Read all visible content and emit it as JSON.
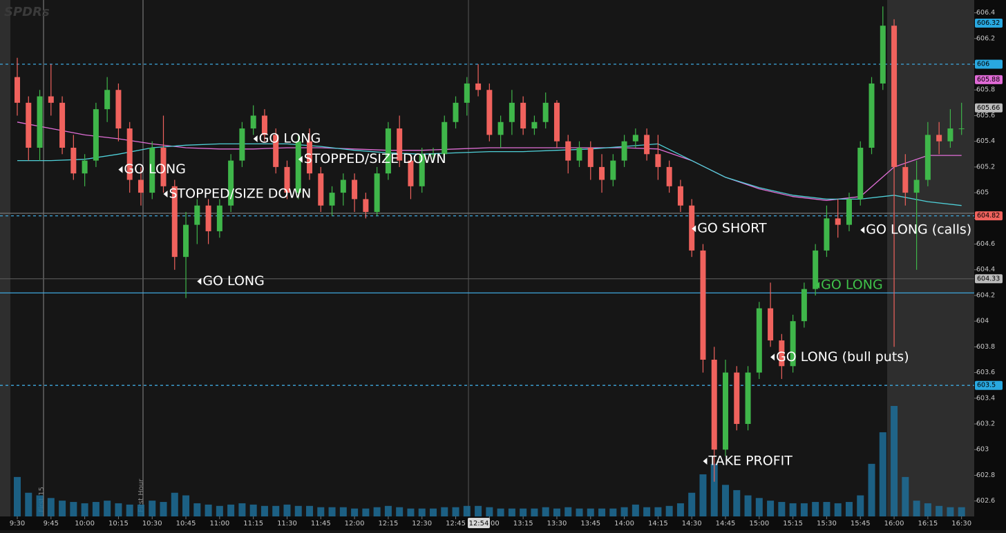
{
  "watermark": "SPDRs",
  "session_markers": [
    "First 15",
    "First Hour"
  ],
  "cursor_label": "12:54",
  "chart_data": {
    "type": "candlestick",
    "categories": [
      "9:30",
      null,
      null,
      "9:45",
      null,
      null,
      "10:00",
      null,
      null,
      "10:15",
      null,
      null,
      "10:30",
      null,
      null,
      "10:45",
      null,
      null,
      "11:00",
      null,
      null,
      "11:15",
      null,
      null,
      "11:30",
      null,
      null,
      "11:45",
      null,
      null,
      "12:00",
      null,
      null,
      "12:15",
      null,
      null,
      "12:30",
      null,
      null,
      "12:45",
      null,
      null,
      "13:00",
      null,
      null,
      "13:15",
      null,
      null,
      "13:30",
      null,
      null,
      "13:45",
      null,
      null,
      "14:00",
      null,
      null,
      "14:15",
      null,
      null,
      "14:30",
      null,
      null,
      "14:45",
      null,
      null,
      "15:00",
      null,
      null,
      "15:15",
      null,
      null,
      "15:30",
      null,
      null,
      "15:45",
      null,
      null,
      "16:00",
      null,
      null,
      "16:15",
      null,
      null,
      "16:30"
    ],
    "open": [
      605.9,
      605.7,
      605.35,
      605.75,
      605.7,
      605.35,
      605.15,
      605.25,
      605.65,
      605.8,
      605.5,
      605.1,
      605.0,
      605.35,
      605.05,
      604.5,
      604.75,
      604.9,
      604.7,
      604.9,
      605.25,
      605.5,
      605.6,
      605.45,
      605.2,
      605.0,
      605.4,
      605.15,
      604.9,
      605.0,
      605.1,
      604.95,
      604.85,
      605.15,
      605.5,
      605.25,
      605.05,
      605.3,
      605.3,
      605.55,
      605.7,
      605.85,
      605.8,
      605.45,
      605.55,
      605.7,
      605.5,
      605.55,
      605.7,
      605.4,
      605.25,
      605.35,
      605.2,
      605.1,
      605.25,
      605.4,
      605.45,
      605.3,
      605.2,
      605.05,
      604.9,
      604.55,
      603.7,
      603.0,
      603.6,
      603.2,
      603.6,
      604.1,
      603.85,
      603.65,
      604.0,
      604.25,
      604.55,
      604.8,
      604.75,
      604.95,
      605.35,
      605.85,
      606.3,
      605.2,
      605.0,
      605.1,
      605.45,
      605.4,
      605.5
    ],
    "high": [
      606.05,
      605.75,
      605.8,
      606.0,
      605.75,
      605.45,
      605.3,
      605.7,
      605.9,
      605.85,
      605.55,
      605.2,
      605.4,
      605.6,
      605.1,
      604.85,
      604.95,
      604.95,
      604.95,
      605.3,
      605.55,
      605.68,
      605.65,
      605.5,
      605.25,
      605.45,
      605.5,
      605.2,
      605.05,
      605.15,
      605.15,
      605.0,
      605.2,
      605.55,
      605.6,
      605.3,
      605.35,
      605.35,
      605.6,
      605.75,
      605.9,
      606.0,
      605.85,
      605.6,
      605.8,
      605.75,
      605.6,
      605.78,
      605.72,
      605.45,
      605.4,
      605.4,
      605.3,
      605.3,
      605.45,
      605.5,
      605.5,
      605.45,
      605.25,
      605.1,
      604.95,
      604.6,
      603.8,
      603.7,
      603.65,
      603.65,
      604.15,
      604.3,
      603.9,
      604.05,
      604.3,
      604.6,
      604.9,
      604.95,
      605.0,
      605.4,
      605.9,
      606.45,
      606.35,
      605.3,
      605.25,
      605.55,
      605.55,
      605.65,
      605.7
    ],
    "low": [
      605.6,
      605.25,
      605.25,
      605.6,
      605.3,
      605.1,
      605.05,
      605.2,
      605.55,
      605.4,
      605.0,
      604.9,
      604.95,
      605.0,
      604.4,
      604.18,
      604.6,
      604.6,
      604.65,
      604.85,
      605.2,
      605.45,
      605.4,
      605.15,
      604.95,
      604.95,
      605.1,
      604.85,
      604.82,
      604.9,
      604.85,
      604.8,
      604.82,
      605.1,
      605.2,
      604.95,
      605.0,
      605.25,
      605.25,
      605.5,
      605.6,
      605.75,
      605.4,
      605.35,
      605.45,
      605.45,
      605.45,
      605.5,
      605.35,
      605.15,
      605.2,
      605.1,
      605.0,
      605.05,
      605.2,
      605.35,
      605.25,
      605.1,
      605.0,
      604.85,
      604.5,
      603.6,
      602.75,
      602.95,
      603.15,
      603.15,
      603.55,
      603.8,
      603.55,
      603.6,
      603.95,
      604.2,
      604.5,
      604.65,
      604.7,
      604.9,
      605.3,
      605.8,
      603.8,
      604.9,
      604.4,
      605.05,
      605.3,
      605.35,
      605.45
    ],
    "close": [
      605.7,
      605.35,
      605.75,
      605.7,
      605.35,
      605.15,
      605.25,
      605.65,
      605.8,
      605.5,
      605.1,
      605.0,
      605.35,
      605.05,
      604.5,
      604.75,
      604.9,
      604.7,
      604.9,
      605.25,
      605.5,
      605.6,
      605.45,
      605.2,
      605.0,
      605.4,
      605.15,
      604.9,
      605.0,
      605.1,
      604.95,
      604.85,
      605.15,
      605.5,
      605.25,
      605.05,
      605.3,
      605.3,
      605.55,
      605.7,
      605.85,
      605.8,
      605.45,
      605.55,
      605.7,
      605.5,
      605.55,
      605.7,
      605.4,
      605.25,
      605.35,
      605.2,
      605.1,
      605.25,
      605.4,
      605.45,
      605.3,
      605.2,
      605.05,
      604.9,
      604.55,
      603.7,
      603.0,
      603.6,
      603.2,
      603.6,
      604.1,
      603.85,
      603.65,
      604.0,
      604.25,
      604.55,
      604.8,
      604.75,
      604.95,
      605.35,
      605.85,
      606.3,
      605.2,
      605.0,
      605.1,
      605.45,
      605.4,
      605.5,
      605.5
    ],
    "volume": [
      150,
      90,
      80,
      70,
      60,
      55,
      50,
      55,
      60,
      50,
      45,
      45,
      60,
      55,
      90,
      80,
      50,
      45,
      40,
      45,
      50,
      45,
      40,
      40,
      45,
      40,
      40,
      35,
      35,
      35,
      30,
      30,
      35,
      40,
      35,
      30,
      30,
      30,
      35,
      35,
      40,
      40,
      35,
      30,
      30,
      30,
      30,
      35,
      30,
      35,
      30,
      30,
      30,
      30,
      35,
      45,
      35,
      35,
      40,
      50,
      90,
      160,
      200,
      120,
      100,
      80,
      70,
      60,
      55,
      50,
      50,
      55,
      55,
      50,
      55,
      80,
      200,
      320,
      420,
      150,
      60,
      50,
      40,
      35,
      35
    ],
    "up_color": "#3fb64a",
    "down_color": "#f0625d",
    "volume_color": "#1d6d98",
    "lines": [
      {
        "color": "#e26fd8",
        "x": [
          "9:30",
          "9:45",
          "10:00",
          "10:15",
          "10:30",
          "10:45",
          "11:00",
          "11:15",
          "11:30",
          "11:45",
          "12:00",
          "12:15",
          "12:30",
          "12:45",
          "13:00",
          "13:15",
          "13:30",
          "13:45",
          "14:00",
          "14:15",
          "14:30",
          "14:45",
          "15:00",
          "15:15",
          "15:30",
          "15:45",
          "16:00",
          "16:15",
          "16:30"
        ],
        "values": [
          605.55,
          605.5,
          605.45,
          605.42,
          605.38,
          605.35,
          605.34,
          605.34,
          605.35,
          605.35,
          605.34,
          605.33,
          605.33,
          605.34,
          605.35,
          605.35,
          605.35,
          605.35,
          605.35,
          605.34,
          605.25,
          605.12,
          605.03,
          604.97,
          604.94,
          604.97,
          605.2,
          605.29,
          605.29
        ]
      },
      {
        "color": "#4fd1d9",
        "x": [
          "9:30",
          "9:45",
          "10:00",
          "10:15",
          "10:30",
          "10:45",
          "11:00",
          "11:15",
          "11:30",
          "11:45",
          "12:00",
          "12:15",
          "12:30",
          "12:45",
          "13:00",
          "13:15",
          "13:30",
          "13:45",
          "14:00",
          "14:15",
          "14:30",
          "14:45",
          "15:00",
          "15:15",
          "15:30",
          "15:45",
          "16:00",
          "16:15",
          "16:30"
        ],
        "values": [
          605.25,
          605.25,
          605.26,
          605.3,
          605.35,
          605.37,
          605.38,
          605.38,
          605.38,
          605.36,
          605.33,
          605.31,
          605.3,
          605.31,
          605.32,
          605.32,
          605.33,
          605.34,
          605.36,
          605.38,
          605.25,
          605.12,
          605.04,
          604.98,
          604.95,
          604.95,
          604.98,
          604.93,
          604.9
        ]
      }
    ],
    "levels": [
      {
        "value": 606,
        "color": "#3fa9e0",
        "dash": true
      },
      {
        "value": 604.82,
        "color": "#3fa9e0",
        "dash": true
      },
      {
        "value": 604.84,
        "color": "#777777",
        "dash": false
      },
      {
        "value": 604.33,
        "color": "#555555",
        "dash": false
      },
      {
        "value": 604.22,
        "color": "#3fa9e0",
        "dash": false
      },
      {
        "value": 603.5,
        "color": "#3fa9e0",
        "dash": true
      }
    ],
    "price_tags": [
      {
        "value": 606.32,
        "color": "#29a8e0"
      },
      {
        "value": 606,
        "color": "#29a8e0"
      },
      {
        "value": 605.88,
        "color": "#e06ad6"
      },
      {
        "value": 605.66,
        "color": "#bbbbbb"
      },
      {
        "value": 604.82,
        "color": "#f0625d"
      },
      {
        "value": 604.33,
        "color": "#bbbbbb"
      },
      {
        "value": 603.5,
        "color": "#29a8e0"
      }
    ],
    "annotations": [
      {
        "text": "GO LONG",
        "time": "10:15",
        "price": 605.18,
        "color": "#ffffff"
      },
      {
        "text": "STOPPED/SIZE DOWN",
        "time": "10:35",
        "price": 604.99,
        "color": "#ffffff"
      },
      {
        "text": "GO LONG",
        "time": "11:15",
        "price": 605.42,
        "color": "#ffffff"
      },
      {
        "text": "STOPPED/SIZE DOWN",
        "time": "11:35",
        "price": 605.26,
        "color": "#ffffff"
      },
      {
        "text": "GO LONG",
        "time": "10:50",
        "price": 604.31,
        "color": "#ffffff"
      },
      {
        "text": "GO SHORT",
        "time": "14:30",
        "price": 604.72,
        "color": "#ffffff"
      },
      {
        "text": "GO LONG",
        "time": "15:25",
        "price": 604.28,
        "color": "#3fc24a"
      },
      {
        "text": "GO LONG (calls)",
        "time": "15:45",
        "price": 604.71,
        "color": "#ffffff"
      },
      {
        "text": "GO LONG (bull puts)",
        "time": "15:05",
        "price": 603.72,
        "color": "#ffffff"
      },
      {
        "text": "TAKE PROFIT",
        "time": "14:35",
        "price": 602.91,
        "color": "#ffffff"
      }
    ],
    "ylim": [
      602.48,
      606.5
    ],
    "yticks": [
      602.6,
      602.8,
      603,
      603.2,
      603.4,
      603.6,
      603.8,
      604,
      604.2,
      604.4,
      604.6,
      604.8,
      605,
      605.2,
      605.4,
      605.6,
      605.8,
      606,
      606.2,
      606.4
    ]
  }
}
